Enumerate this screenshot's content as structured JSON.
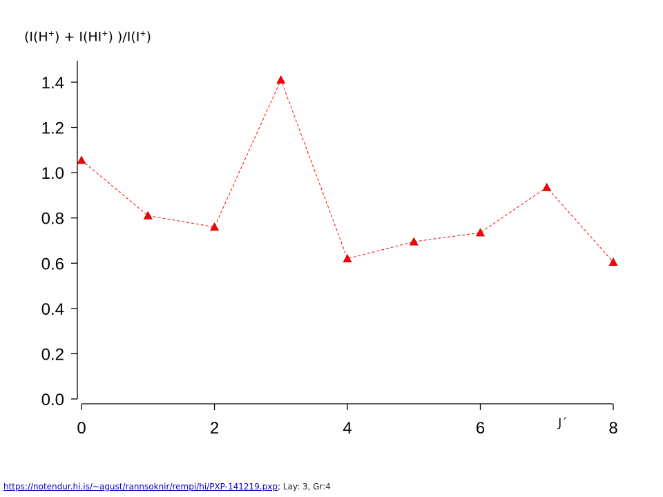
{
  "chart_data": {
    "type": "line",
    "title_parts": [
      "(I(H",
      "+",
      ") + I(HI",
      "+",
      ") )/I(I",
      "+",
      ")"
    ],
    "xlabel": "J´",
    "ylabel": "",
    "xlim": [
      0,
      8
    ],
    "ylim": [
      0,
      1.5
    ],
    "xticks": [
      "0",
      "2",
      "4",
      "6",
      "8"
    ],
    "yticks": [
      "0.0",
      "0.2",
      "0.4",
      "0.6",
      "0.8",
      "1.0",
      "1.2",
      "1.4"
    ],
    "grid": false,
    "marker": "triangle",
    "line_style": "dashed",
    "color": "#ff0000",
    "series": [
      {
        "x": [
          0,
          1,
          2,
          3,
          4,
          5,
          6,
          7,
          8
        ],
        "y": [
          1.055,
          0.81,
          0.76,
          1.41,
          0.62,
          0.695,
          0.735,
          0.935,
          0.605
        ]
      }
    ]
  },
  "footer": {
    "link": "https://notendur.hi.is/~agust/rannsoknir/rempi/hi/PXP-141219.pxp",
    "note": "; Lay: 3, Gr:4"
  }
}
